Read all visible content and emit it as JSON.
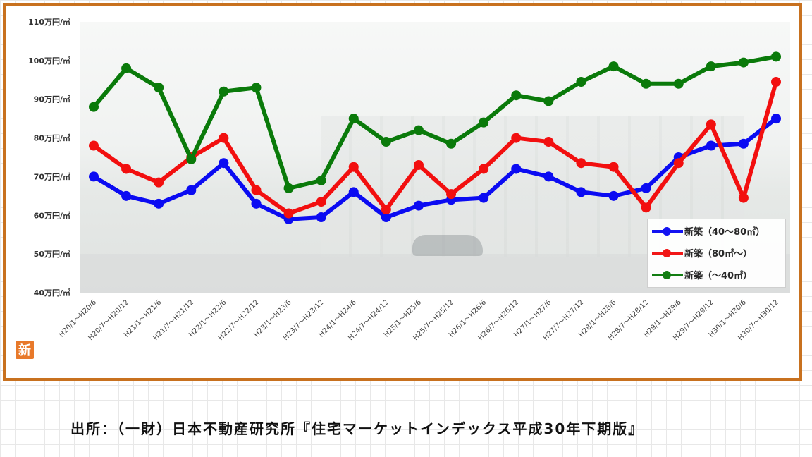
{
  "colors": {
    "frame": "#c8711f",
    "badge": "#e8792a",
    "series_blue": "#0b0bf2",
    "series_red": "#f20f0f",
    "series_green": "#0a7a0a"
  },
  "badge_text": "新",
  "source_text": "出所：（一財）日本不動産研究所『住宅マーケットインデックス平成30年下期版』",
  "chart_data": {
    "type": "line",
    "y_tick_labels": [
      "110万円/㎡",
      "100万円/㎡",
      "90万円/㎡",
      "80万円/㎡",
      "70万円/㎡",
      "60万円/㎡",
      "50万円/㎡",
      "40万円/㎡"
    ],
    "ylim": [
      40,
      110
    ],
    "y_unit": "万円/㎡",
    "categories": [
      "H20/1～H20/6",
      "H20/7～H20/12",
      "H21/1～H21/6",
      "H21/7～H21/12",
      "H22/1～H22/6",
      "H22/7～H22/12",
      "H23/1～H23/6",
      "H23/7～H23/12",
      "H24/1～H24/6",
      "H24/7～H24/12",
      "H25/1～H25/6",
      "H25/7～H25/12",
      "H26/1～H26/6",
      "H26/7～H26/12",
      "H27/1～H27/6",
      "H27/7～H27/12",
      "H28/1～H28/6",
      "H28/7～H28/12",
      "H29/1～H29/6",
      "H29/7～H29/12",
      "H30/1～H30/6",
      "H30/7～H30/12"
    ],
    "series": [
      {
        "name": "新築（40～80㎡）",
        "color": "#0b0bf2",
        "values": [
          70,
          65,
          63,
          66.5,
          73.5,
          63,
          59,
          59.5,
          66,
          59.5,
          62.5,
          64,
          64.5,
          72,
          70,
          66,
          65,
          67,
          75,
          78,
          78.5,
          85
        ]
      },
      {
        "name": "新築（80㎡～）",
        "color": "#f20f0f",
        "values": [
          78,
          72,
          68.5,
          75,
          80,
          66.5,
          60.5,
          63.5,
          72.5,
          61.5,
          73,
          65.5,
          72,
          80,
          79,
          73.5,
          72.5,
          62,
          73.5,
          83.5,
          64.5,
          94.5
        ]
      },
      {
        "name": "新築（～40㎡）",
        "color": "#0a7a0a",
        "values": [
          88,
          98,
          93,
          74.5,
          92,
          93,
          67,
          69,
          85,
          79,
          82,
          78.5,
          84,
          91,
          89.5,
          94.5,
          98.5,
          94,
          94,
          98.5,
          99.5,
          101
        ]
      }
    ],
    "legend_position": "bottom-right",
    "grid": false
  }
}
